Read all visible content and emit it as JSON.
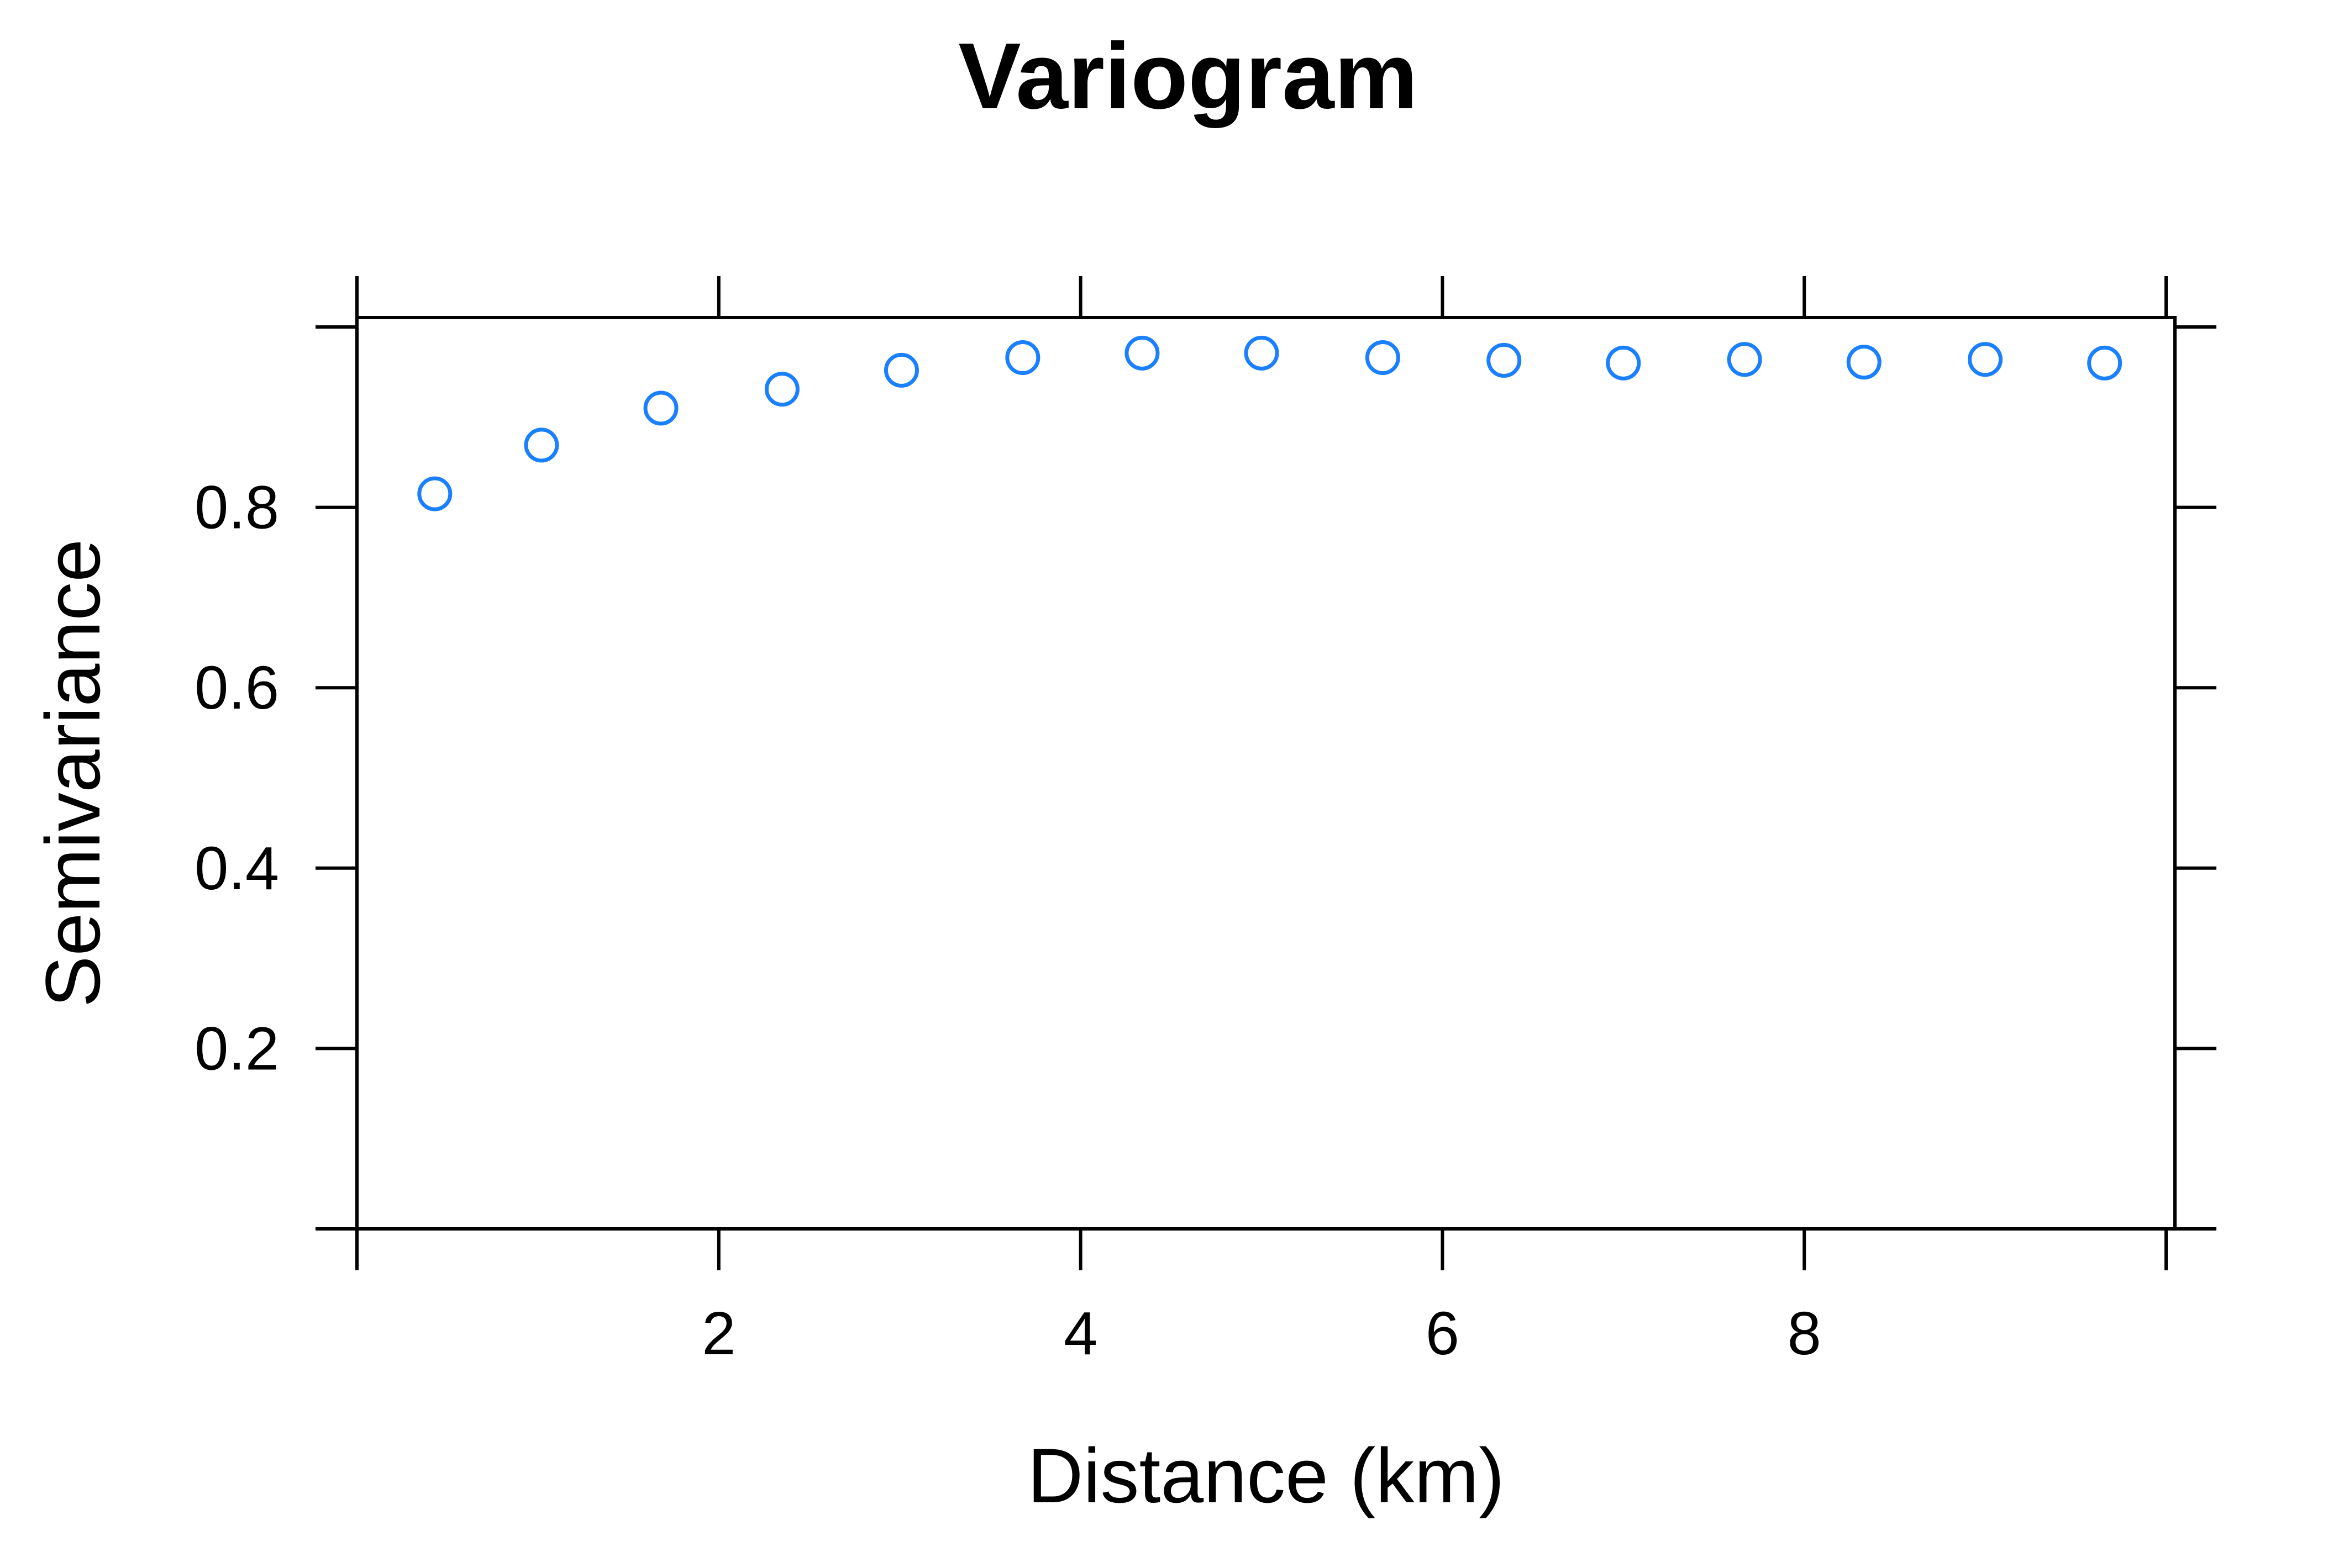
{
  "chart_data": {
    "type": "scatter",
    "title": "Variogram",
    "xlabel": "Distance (km)",
    "ylabel": "Semivariance",
    "xlim": [
      0,
      10
    ],
    "ylim": [
      0,
      1.01
    ],
    "x_ticks": [
      2,
      4,
      6,
      8
    ],
    "x_tick_labels": [
      "2",
      "4",
      "6",
      "8"
    ],
    "y_ticks": [
      0.2,
      0.4,
      0.6,
      0.8
    ],
    "y_tick_labels": [
      "0.2",
      "0.4",
      "0.6",
      "0.8"
    ],
    "grid": false,
    "marker": "open-circle",
    "color": "#1a80ff",
    "points": [
      {
        "x": 0.43,
        "y": 0.815
      },
      {
        "x": 1.02,
        "y": 0.869
      },
      {
        "x": 1.68,
        "y": 0.91
      },
      {
        "x": 2.35,
        "y": 0.931
      },
      {
        "x": 3.01,
        "y": 0.952
      },
      {
        "x": 3.68,
        "y": 0.966
      },
      {
        "x": 4.34,
        "y": 0.971
      },
      {
        "x": 5.0,
        "y": 0.971
      },
      {
        "x": 5.67,
        "y": 0.966
      },
      {
        "x": 6.34,
        "y": 0.963
      },
      {
        "x": 7.0,
        "y": 0.96
      },
      {
        "x": 7.67,
        "y": 0.964
      },
      {
        "x": 8.33,
        "y": 0.961
      },
      {
        "x": 9.0,
        "y": 0.964
      },
      {
        "x": 9.66,
        "y": 0.96
      }
    ]
  }
}
